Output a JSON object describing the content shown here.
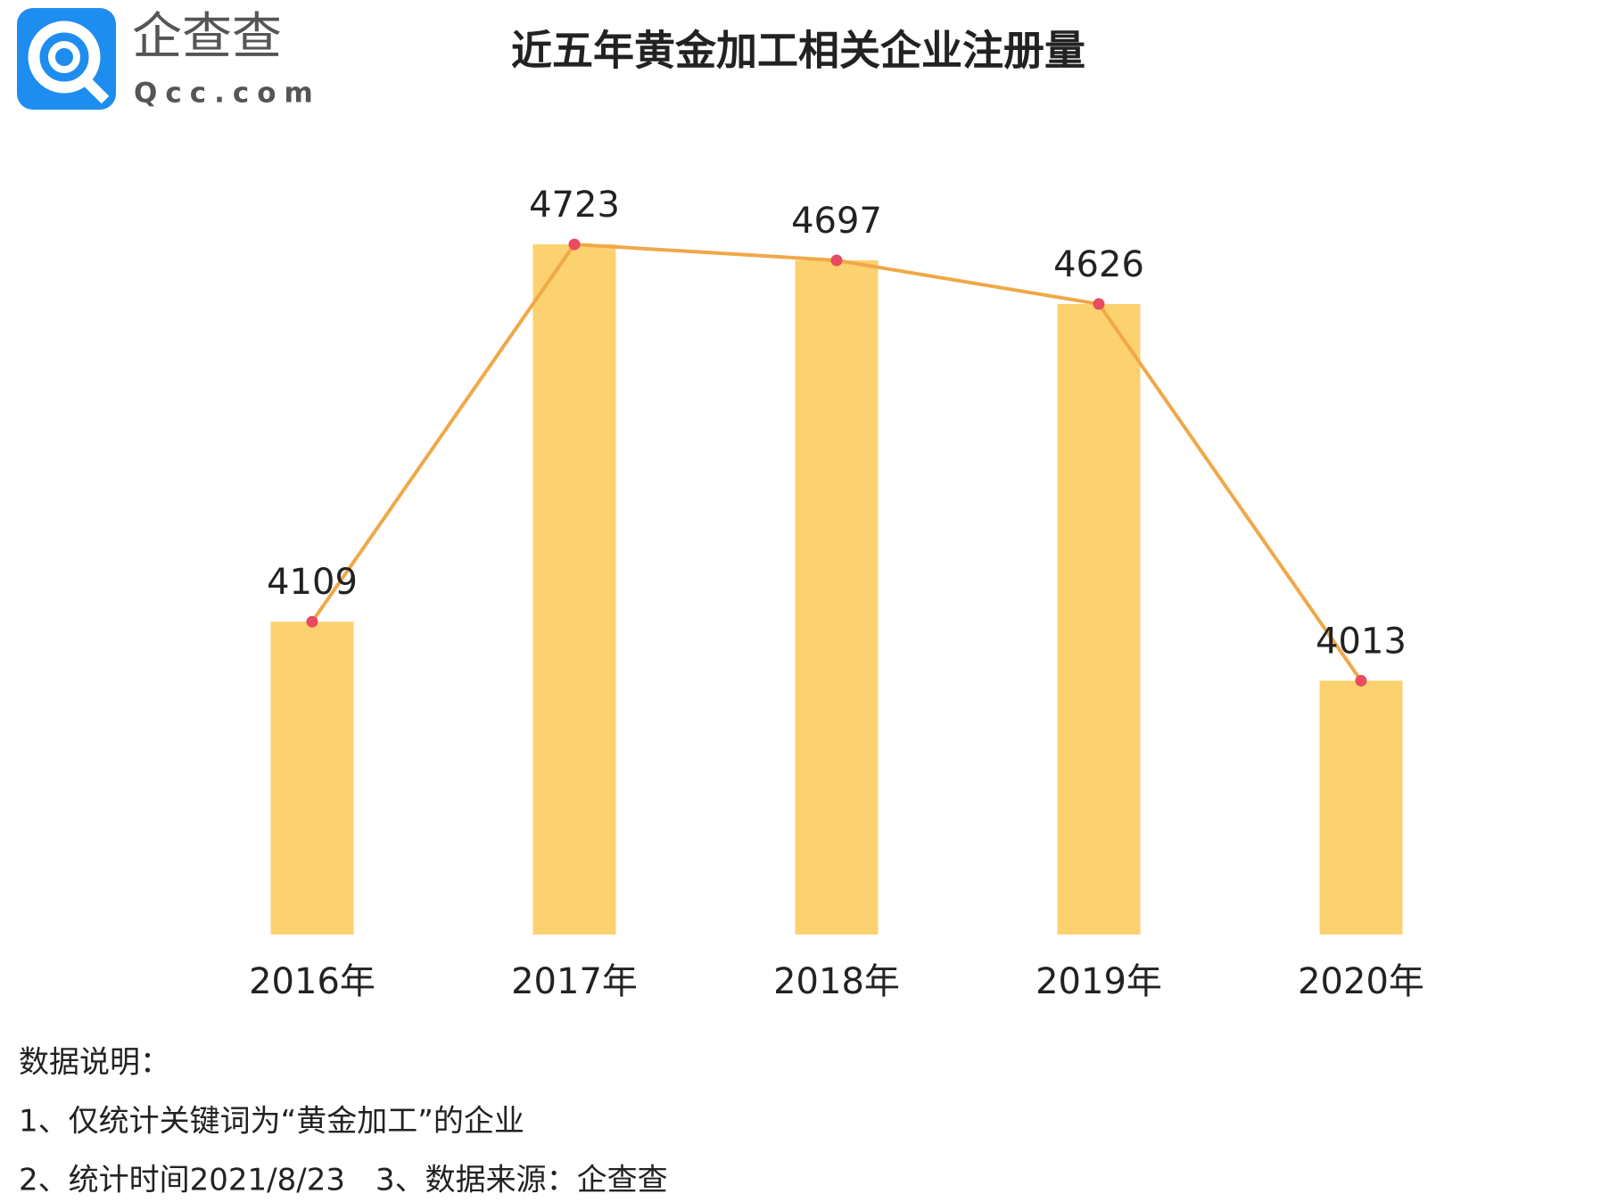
{
  "logo": {
    "name": "企查查",
    "domain": "Qcc.com"
  },
  "chart_data": {
    "type": "bar",
    "title": "近五年黄金加工相关企业注册量",
    "categories": [
      "2016年",
      "2017年",
      "2018年",
      "2019年",
      "2020年"
    ],
    "values": [
      4109,
      4723,
      4697,
      4626,
      4013
    ],
    "color": "#fcd16f",
    "line_overlay": true,
    "line_color": "#f0a848",
    "point_color": "#e84a5f",
    "ylim": [
      3600,
      4800
    ],
    "grid": false
  },
  "notes": [
    "数据说明：",
    "1、仅统计关键词为“黄金加工”的企业",
    "2、统计时间2021/8/23　3、数据来源：企查查"
  ]
}
